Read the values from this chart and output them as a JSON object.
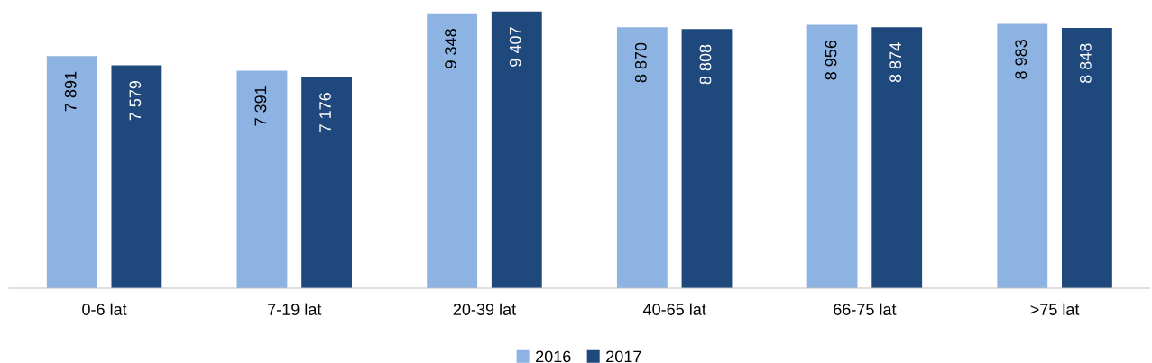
{
  "chart_data": {
    "type": "bar",
    "categories": [
      "0-6 lat",
      "7-19 lat",
      "20-39 lat",
      "40-65 lat",
      "66-75 lat",
      ">75 lat"
    ],
    "series": [
      {
        "name": "2016",
        "color": "#8db3e2",
        "values": [
          7891,
          7391,
          9348,
          8870,
          8956,
          8983
        ],
        "value_labels": [
          "7 891",
          "7 391",
          "9 348",
          "8 870",
          "8 956",
          "8 983"
        ]
      },
      {
        "name": "2017",
        "color": "#1f497d",
        "values": [
          7579,
          7176,
          9407,
          8808,
          8874,
          8848
        ],
        "value_labels": [
          "7 579",
          "7 176",
          "9 407",
          "8 808",
          "8 874",
          "8 848"
        ]
      }
    ],
    "legend": "bottom",
    "grid": false,
    "tick_labels": "x"
  }
}
